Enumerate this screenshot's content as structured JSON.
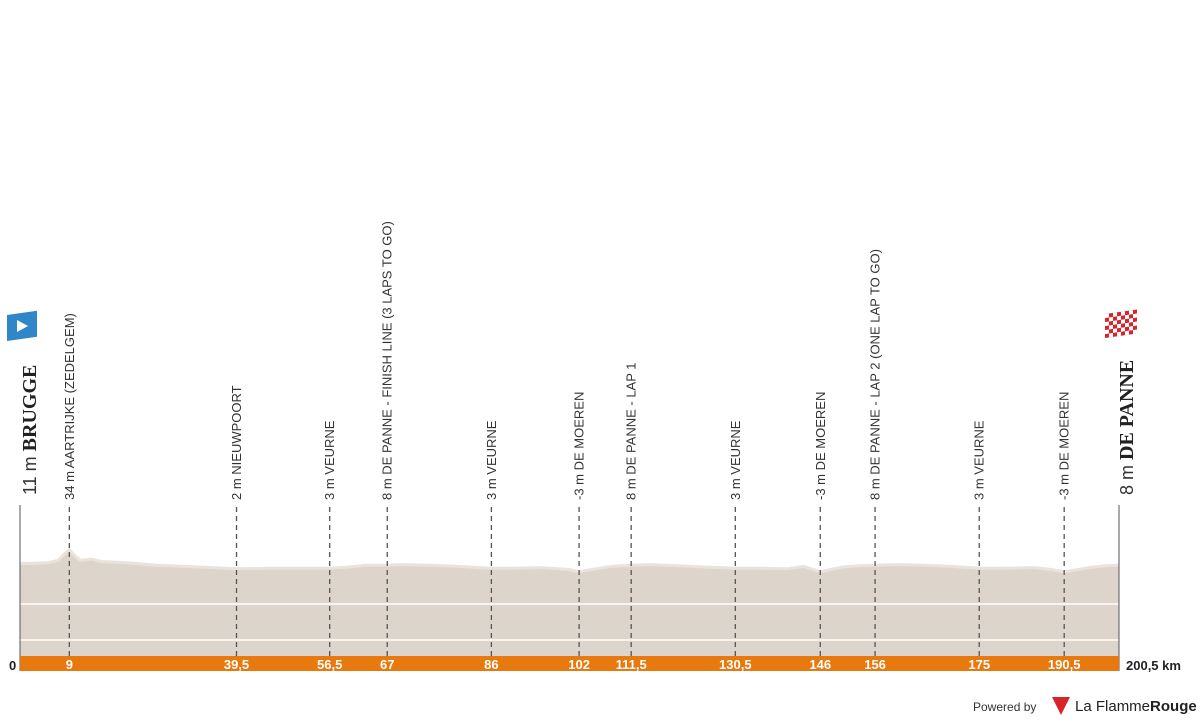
{
  "chart_data": {
    "type": "area",
    "distance_total": 200.5,
    "distance_unit": "km",
    "profile": [
      [
        0,
        11
      ],
      [
        2,
        11
      ],
      [
        5,
        12
      ],
      [
        7,
        16
      ],
      [
        8,
        26
      ],
      [
        9,
        34
      ],
      [
        10,
        24
      ],
      [
        11,
        16
      ],
      [
        13,
        18
      ],
      [
        15,
        14
      ],
      [
        18,
        13
      ],
      [
        21,
        11
      ],
      [
        25,
        8
      ],
      [
        30,
        6
      ],
      [
        35,
        4
      ],
      [
        39.5,
        2
      ],
      [
        45,
        3
      ],
      [
        50,
        3
      ],
      [
        56.5,
        3
      ],
      [
        60,
        5
      ],
      [
        63,
        8
      ],
      [
        67,
        8
      ],
      [
        70,
        9
      ],
      [
        75,
        8
      ],
      [
        80,
        6
      ],
      [
        86,
        3
      ],
      [
        90,
        3
      ],
      [
        95,
        4
      ],
      [
        100,
        1
      ],
      [
        102,
        -3
      ],
      [
        105,
        2
      ],
      [
        108,
        6
      ],
      [
        111.5,
        8
      ],
      [
        115,
        9
      ],
      [
        120,
        7
      ],
      [
        125,
        5
      ],
      [
        130.5,
        3
      ],
      [
        135,
        3
      ],
      [
        140,
        2
      ],
      [
        143,
        6
      ],
      [
        146,
        -3
      ],
      [
        150,
        5
      ],
      [
        153,
        7
      ],
      [
        156,
        8
      ],
      [
        160,
        9
      ],
      [
        165,
        8
      ],
      [
        170,
        6
      ],
      [
        175,
        3
      ],
      [
        180,
        3
      ],
      [
        185,
        4
      ],
      [
        188,
        1
      ],
      [
        190.5,
        -3
      ],
      [
        195,
        4
      ],
      [
        198,
        7
      ],
      [
        200.5,
        8
      ]
    ],
    "ylim": [
      -5,
      450
    ],
    "markers": [
      {
        "km": 0,
        "km_label": "0",
        "label": "11 m",
        "city": "BRUGGE",
        "type": "start"
      },
      {
        "km": 9,
        "km_label": "9",
        "label": "34 m AARTRIJKE (ZEDELGEM)"
      },
      {
        "km": 39.5,
        "km_label": "39,5",
        "label": "2 m NIEUWPOORT"
      },
      {
        "km": 56.5,
        "km_label": "56,5",
        "label": "3 m VEURNE"
      },
      {
        "km": 67,
        "km_label": "67",
        "label": "8 m DE PANNE - FINISH LINE (3 LAPS TO GO)"
      },
      {
        "km": 86,
        "km_label": "86",
        "label": "3 m VEURNE"
      },
      {
        "km": 102,
        "km_label": "102",
        "label": "-3 m DE MOEREN"
      },
      {
        "km": 111.5,
        "km_label": "111,5",
        "label": "8 m DE PANNE - LAP 1"
      },
      {
        "km": 130.5,
        "km_label": "130,5",
        "label": "3 m VEURNE"
      },
      {
        "km": 146,
        "km_label": "146",
        "label": "-3 m DE MOEREN"
      },
      {
        "km": 156,
        "km_label": "156",
        "label": "8 m DE PANNE - LAP 2 (ONE LAP TO GO)"
      },
      {
        "km": 175,
        "km_label": "175",
        "label": "3 m VEURNE"
      },
      {
        "km": 190.5,
        "km_label": "190,5",
        "label": "-3 m DE MOEREN"
      },
      {
        "km": 200.5,
        "km_label": "200,5 km",
        "label": "8 m",
        "city": "DE PANNE",
        "type": "finish"
      }
    ],
    "colors": {
      "axis_bar": "#e8790e",
      "profile_fill": "#ddd5cb",
      "profile_top": "#e9e3dc",
      "start_flag": "#2f86c8",
      "finish_flag": "#d6242b"
    }
  },
  "footer": {
    "powered_by": "Powered by",
    "brand_part1": "La Flamme",
    "brand_part2": "Rouge"
  }
}
